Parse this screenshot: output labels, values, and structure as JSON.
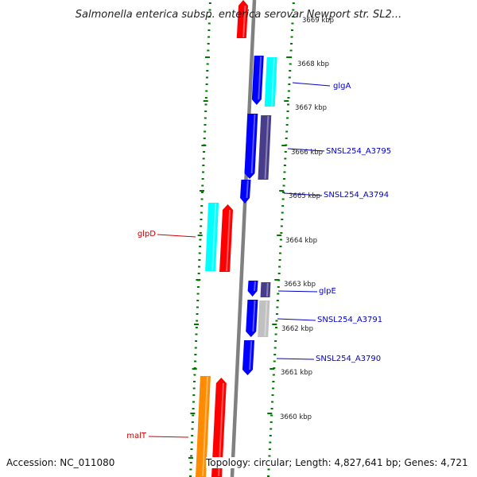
{
  "title": "Salmonella enterica subsp. enterica serovar Newport str. SL2...",
  "footer": {
    "accession": "Accession: NC_011080",
    "topology": "Topology: circular; Length: 4,827,641 bp; Genes: 4,721"
  },
  "colors": {
    "forward_cds": "#ff0000",
    "reverse_cds": "#0000ff",
    "cyan_feature": "#00ffff",
    "dark_slate_feature": "#483d8b",
    "orange_feature": "#ff8c00",
    "gray_feature": "#c0c0c0",
    "backbone": "#808080",
    "tick_marks": "#007700",
    "forward_label": "#cc0000",
    "reverse_label": "#0000cc"
  },
  "kbp_labels": [
    {
      "text": "3669 kbp",
      "value": 3669
    },
    {
      "text": "3668 kbp",
      "value": 3668
    },
    {
      "text": "3667 kbp",
      "value": 3667
    },
    {
      "text": "3666 kbp",
      "value": 3666
    },
    {
      "text": "3665 kbp",
      "value": 3665
    },
    {
      "text": "3664 kbp",
      "value": 3664
    },
    {
      "text": "3663 kbp",
      "value": 3663
    },
    {
      "text": "3662 kbp",
      "value": 3662
    },
    {
      "text": "3661 kbp",
      "value": 3661
    },
    {
      "text": "3660 kbp",
      "value": 3660
    }
  ],
  "genes": [
    {
      "name": "glpD",
      "strand": "forward"
    },
    {
      "name": "malT",
      "strand": "forward"
    },
    {
      "name": "glgA",
      "strand": "reverse"
    },
    {
      "name": "SNSL254_A3795",
      "strand": "reverse"
    },
    {
      "name": "SNSL254_A3794",
      "strand": "reverse"
    },
    {
      "name": "glpE",
      "strand": "reverse"
    },
    {
      "name": "SNSL254_A3791",
      "strand": "reverse"
    },
    {
      "name": "SNSL254_A3790",
      "strand": "reverse"
    }
  ]
}
